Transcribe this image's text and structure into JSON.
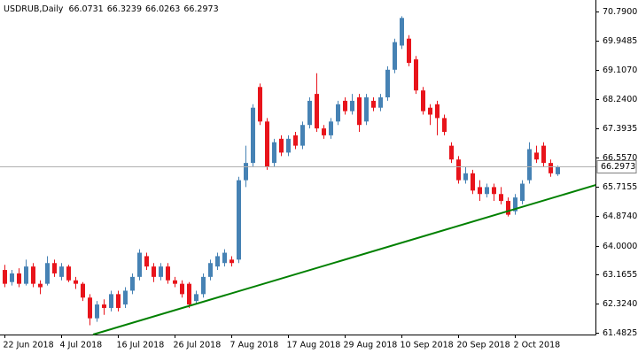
{
  "chart_data": {
    "type": "candlestick",
    "title": "USDRUB,Daily",
    "categories": [
      "22 Jun 2018",
      null,
      null,
      null,
      null,
      null,
      null,
      null,
      "4 Jul 2018",
      null,
      null,
      null,
      null,
      null,
      null,
      null,
      "16 Jul 2018",
      null,
      null,
      null,
      null,
      null,
      null,
      null,
      "26 Jul 2018",
      null,
      null,
      null,
      null,
      null,
      null,
      null,
      "7 Aug 2018",
      null,
      null,
      null,
      null,
      null,
      null,
      null,
      "17 Aug 2018",
      null,
      null,
      null,
      null,
      null,
      null,
      null,
      "29 Aug 2018",
      null,
      null,
      null,
      null,
      null,
      null,
      null,
      "10 Sep 2018",
      null,
      null,
      null,
      null,
      null,
      null,
      null,
      "20 Sep 2018",
      null,
      null,
      null,
      null,
      null,
      null,
      null,
      "2 Oct 2018",
      null,
      null,
      null,
      null,
      null,
      null
    ],
    "open": [
      63.3,
      62.95,
      63.2,
      62.9,
      63.4,
      62.9,
      62.9,
      63.5,
      63.1,
      63.4,
      63.0,
      62.9,
      62.5,
      61.9,
      62.3,
      62.2,
      62.6,
      62.3,
      62.7,
      63.1,
      63.7,
      63.4,
      63.1,
      63.4,
      63.0,
      62.9,
      62.9,
      62.4,
      62.6,
      63.1,
      63.4,
      63.5,
      63.6,
      63.6,
      65.9,
      66.4,
      68.6,
      67.6,
      66.4,
      67.1,
      66.7,
      67.2,
      66.9,
      67.5,
      68.4,
      67.4,
      67.2,
      67.6,
      68.2,
      67.9,
      68.3,
      67.6,
      68.2,
      68.0,
      68.3,
      69.1,
      69.8,
      70.0,
      69.4,
      68.5,
      68.0,
      68.1,
      67.7,
      66.9,
      66.5,
      65.9,
      66.1,
      65.7,
      65.5,
      65.7,
      65.5,
      65.3,
      65.0,
      65.3,
      65.9,
      66.7,
      66.9,
      66.4,
      66.0731
    ],
    "high": [
      63.45,
      63.3,
      63.35,
      63.6,
      63.5,
      63.0,
      63.7,
      63.6,
      63.5,
      63.45,
      63.1,
      62.95,
      62.6,
      62.4,
      62.45,
      62.7,
      62.7,
      62.8,
      63.2,
      63.9,
      63.8,
      63.5,
      63.5,
      63.5,
      63.1,
      63.0,
      62.95,
      62.7,
      63.2,
      63.6,
      63.8,
      63.9,
      63.7,
      66.0,
      66.9,
      68.1,
      68.7,
      67.7,
      67.1,
      67.2,
      67.2,
      67.3,
      67.6,
      68.3,
      69.0,
      67.5,
      67.7,
      68.2,
      68.3,
      68.4,
      68.4,
      68.4,
      68.3,
      68.4,
      69.2,
      70.0,
      70.65,
      70.1,
      69.5,
      68.6,
      68.1,
      68.2,
      67.8,
      67.0,
      66.6,
      66.3,
      66.2,
      65.9,
      65.8,
      65.8,
      65.7,
      65.4,
      65.5,
      65.9,
      67.0,
      66.9,
      67.0,
      66.5,
      66.3239
    ],
    "low": [
      62.8,
      62.85,
      62.8,
      62.85,
      62.8,
      62.6,
      62.85,
      63.1,
      63.0,
      62.95,
      62.75,
      62.4,
      61.7,
      61.8,
      62.0,
      62.1,
      62.1,
      62.2,
      62.6,
      63.0,
      63.3,
      62.95,
      63.0,
      62.9,
      62.8,
      62.5,
      62.2,
      62.3,
      62.5,
      63.0,
      63.3,
      63.4,
      63.4,
      63.5,
      65.7,
      66.3,
      67.5,
      66.2,
      66.3,
      66.6,
      66.6,
      66.8,
      66.8,
      67.4,
      67.3,
      67.1,
      67.1,
      67.5,
      67.8,
      67.8,
      67.3,
      67.5,
      67.9,
      67.9,
      68.2,
      69.0,
      69.7,
      69.2,
      68.4,
      67.8,
      67.5,
      67.2,
      67.2,
      66.4,
      65.8,
      65.8,
      65.5,
      65.3,
      65.4,
      65.3,
      65.2,
      64.85,
      64.9,
      65.2,
      65.8,
      66.4,
      66.3,
      66.0,
      66.0263
    ],
    "close": [
      62.9,
      63.2,
      62.9,
      63.4,
      62.9,
      62.8,
      63.5,
      63.2,
      63.4,
      63.0,
      62.9,
      62.5,
      61.9,
      62.3,
      62.2,
      62.6,
      62.2,
      62.7,
      63.1,
      63.8,
      63.4,
      63.1,
      63.4,
      63.0,
      62.9,
      62.6,
      62.3,
      62.6,
      63.1,
      63.5,
      63.7,
      63.8,
      63.5,
      65.9,
      66.4,
      68.0,
      67.6,
      66.3,
      67.0,
      66.7,
      67.1,
      66.9,
      67.5,
      68.2,
      67.4,
      67.2,
      67.6,
      68.1,
      67.9,
      68.2,
      67.5,
      68.3,
      68.0,
      68.3,
      69.1,
      69.9,
      70.6,
      69.3,
      68.5,
      67.9,
      67.8,
      67.7,
      67.3,
      66.5,
      65.9,
      66.1,
      65.6,
      65.5,
      65.7,
      65.5,
      65.3,
      64.9,
      65.4,
      65.8,
      66.8,
      66.5,
      66.4,
      66.1,
      66.2973
    ],
    "up_color": "#4682b4",
    "down_color": "#e8141b",
    "ylim": [
      61.43,
      71.12
    ],
    "yticks": [
      {
        "value": 70.79,
        "label": "70.7900"
      },
      {
        "value": 69.9485,
        "label": "69.9485"
      },
      {
        "value": 69.107,
        "label": "69.1070"
      },
      {
        "value": 68.24,
        "label": "68.2400"
      },
      {
        "value": 67.3935,
        "label": "67.3935"
      },
      {
        "value": 66.557,
        "label": "66.5570"
      },
      {
        "value": 65.7155,
        "label": "65.7155"
      },
      {
        "value": 64.874,
        "label": "64.8740"
      },
      {
        "value": 64,
        "label": "64.0000"
      },
      {
        "value": 63.1655,
        "label": "63.1655"
      },
      {
        "value": 62.324,
        "label": "62.3240"
      },
      {
        "value": 61.4825,
        "label": "61.4825"
      }
    ],
    "last_price_line": true,
    "trendline": {
      "x": [
        12.5,
        83.4
      ],
      "y": [
        61.43,
        65.76
      ],
      "color": "#008000"
    }
  }
}
